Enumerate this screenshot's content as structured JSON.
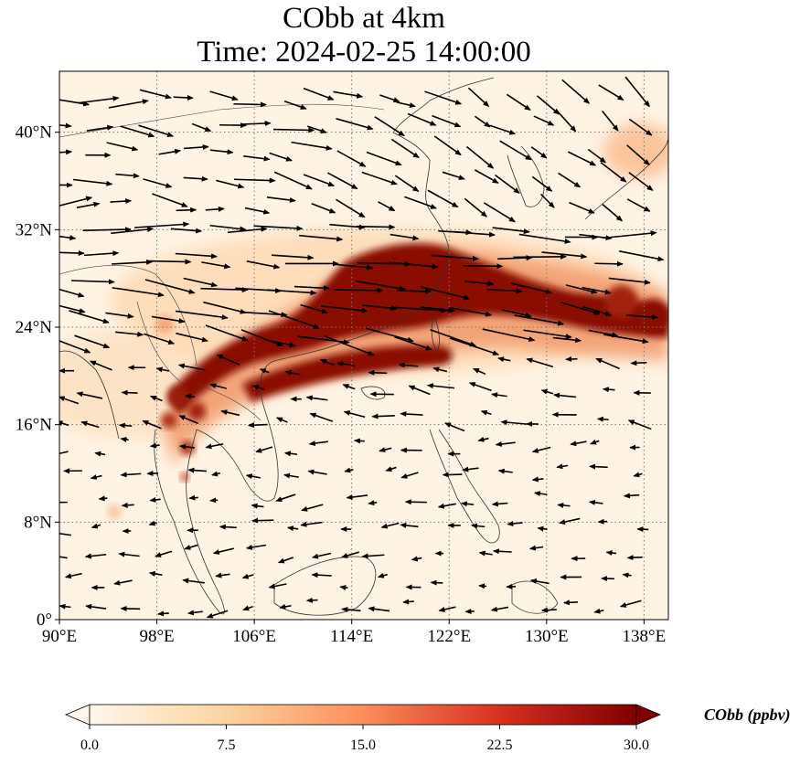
{
  "title": {
    "line1": "CObb at 4km",
    "line2": "Time: 2024-02-25 14:00:00"
  },
  "map": {
    "extent": {
      "lon": [
        90,
        140
      ],
      "lat": [
        0,
        45
      ]
    },
    "lon_ticks": [
      {
        "value": 90,
        "label": "90°E"
      },
      {
        "value": 98,
        "label": "98°E"
      },
      {
        "value": 106,
        "label": "106°E"
      },
      {
        "value": 114,
        "label": "114°E"
      },
      {
        "value": 122,
        "label": "122°E"
      },
      {
        "value": 130,
        "label": "130°E"
      },
      {
        "value": 138,
        "label": "138°E"
      }
    ],
    "lat_ticks": [
      {
        "value": 0,
        "label": "0°"
      },
      {
        "value": 8,
        "label": "8°N"
      },
      {
        "value": 16,
        "label": "16°N"
      },
      {
        "value": 24,
        "label": "24°N"
      },
      {
        "value": 32,
        "label": "32°N"
      },
      {
        "value": 40,
        "label": "40°N"
      }
    ],
    "gridlines": true,
    "field": "CObb concentration",
    "colormap": "OrRd",
    "plume_axis_lonlat": [
      [
        99.5,
        17
      ],
      [
        102,
        19.5
      ],
      [
        106,
        22
      ],
      [
        110,
        24.5
      ],
      [
        114,
        26.5
      ],
      [
        118,
        28
      ],
      [
        123,
        27.5
      ],
      [
        128,
        26.5
      ],
      [
        133,
        26
      ],
      [
        138,
        24.5
      ],
      [
        140,
        24
      ]
    ],
    "plume_south_branch_lonlat": [
      [
        105,
        19
      ],
      [
        110,
        20.5
      ],
      [
        115,
        22
      ],
      [
        120,
        22
      ]
    ],
    "wind_field": "arrows"
  },
  "colorbar": {
    "min": 0.0,
    "max": 30.0,
    "ticks": [
      "0.0",
      "7.5",
      "15.0",
      "22.5",
      "30.0"
    ],
    "tick_values": [
      0,
      7.5,
      15,
      22.5,
      30
    ],
    "label": "CObb (ppbv)",
    "extend": "both",
    "colors": [
      "#fff7ec",
      "#fdd49e",
      "#fc8d59",
      "#d7301f",
      "#7f0000"
    ]
  }
}
